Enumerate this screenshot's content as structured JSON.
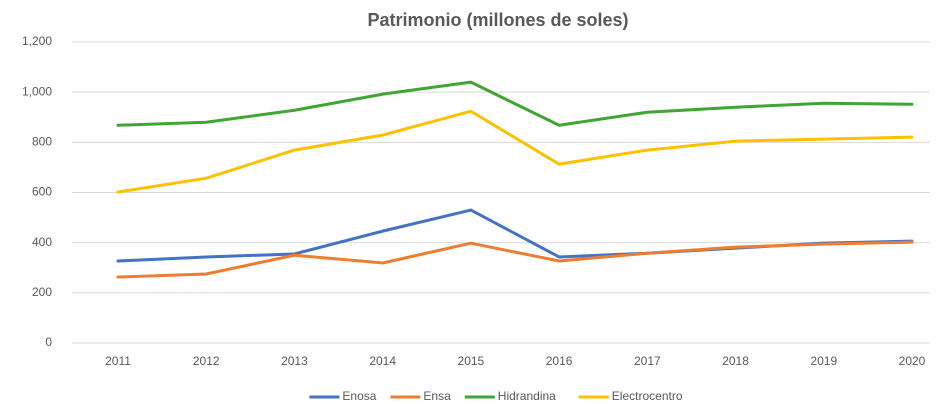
{
  "chart_data": {
    "type": "line",
    "title": "Patrimonio (millones de soles)",
    "categories": [
      "2011",
      "2012",
      "2013",
      "2014",
      "2015",
      "2016",
      "2017",
      "2018",
      "2019",
      "2020"
    ],
    "series": [
      {
        "name": "Enosa",
        "color": "#4472c4",
        "values": [
          327,
          343,
          355,
          446,
          530,
          343,
          358,
          378,
          398,
          406
        ]
      },
      {
        "name": "Ensa",
        "color": "#ed7d31",
        "values": [
          263,
          275,
          350,
          319,
          398,
          327,
          358,
          382,
          394,
          402
        ]
      },
      {
        "name": "Hidrandina",
        "color": "#3fa535",
        "values": [
          868,
          880,
          928,
          992,
          1040,
          868,
          920,
          940,
          956,
          952
        ]
      },
      {
        "name": "Electrocentro",
        "color": "#ffc000",
        "values": [
          602,
          657,
          769,
          829,
          924,
          713,
          769,
          805,
          813,
          821
        ]
      }
    ],
    "ylim": [
      0,
      1200
    ],
    "yticks": [
      0,
      200,
      400,
      600,
      800,
      {
        "value": 1000,
        "label": "1,000"
      },
      {
        "value": 1200,
        "label": "1,200"
      }
    ],
    "grid": true,
    "legend": "bottom"
  }
}
